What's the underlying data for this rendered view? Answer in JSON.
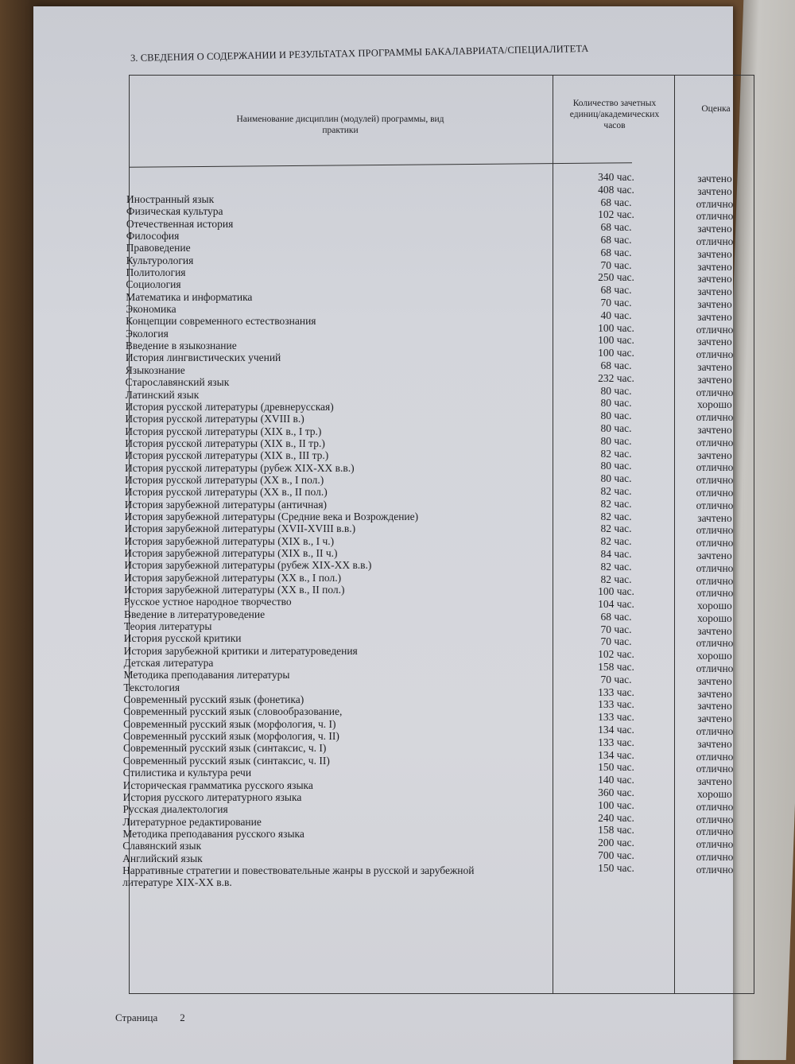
{
  "section_title": "3. СВЕДЕНИЯ О СОДЕРЖАНИИ И РЕЗУЛЬТАТАХ ПРОГРАММЫ БАКАЛАВРИАТА/СПЕЦИАЛИТЕТА",
  "table": {
    "headers": {
      "name": "Наименование дисциплин (модулей) программы, вид практики",
      "hours": "Количество зачетных единиц/академических часов",
      "grade": "Оценка"
    },
    "rows": [
      {
        "name": "Иностранный язык",
        "hours": "340 час.",
        "grade": "зачтено"
      },
      {
        "name": "Физическая культура",
        "hours": "408 час.",
        "grade": "зачтено"
      },
      {
        "name": "Отечественная история",
        "hours": "68 час.",
        "grade": "отлично"
      },
      {
        "name": "Философия",
        "hours": "102 час.",
        "grade": "отлично"
      },
      {
        "name": "Правоведение",
        "hours": "68 час.",
        "grade": "зачтено"
      },
      {
        "name": "Культурология",
        "hours": "68 час.",
        "grade": "отлично"
      },
      {
        "name": "Политология",
        "hours": "68 час.",
        "grade": "зачтено"
      },
      {
        "name": "Социология",
        "hours": "70 час.",
        "grade": "зачтено"
      },
      {
        "name": "Математика и информатика",
        "hours": "250 час.",
        "grade": "зачтено"
      },
      {
        "name": "Экономика",
        "hours": "68 час.",
        "grade": "зачтено"
      },
      {
        "name": "Концепции современного естествознания",
        "hours": "70 час.",
        "grade": "зачтено"
      },
      {
        "name": "Экология",
        "hours": "40 час.",
        "grade": "зачтено"
      },
      {
        "name": "Введение в языкознание",
        "hours": "100 час.",
        "grade": "отлично"
      },
      {
        "name": "История лингвистических учений",
        "hours": "100 час.",
        "grade": "зачтено"
      },
      {
        "name": "Языкознание",
        "hours": "100 час.",
        "grade": "отлично"
      },
      {
        "name": "Старославянский язык",
        "hours": "68 час.",
        "grade": "зачтено"
      },
      {
        "name": "Латинский язык",
        "hours": "232 час.",
        "grade": "зачтено"
      },
      {
        "name": "История русской литературы (древнерусская)",
        "hours": "80 час.",
        "grade": "отлично"
      },
      {
        "name": "История русской литературы (XVIII в.)",
        "hours": "80 час.",
        "grade": "хорошо"
      },
      {
        "name": "История русской литературы (XIX в., I тр.)",
        "hours": "80 час.",
        "grade": "отлично"
      },
      {
        "name": "История русской литературы (XIX в., II тр.)",
        "hours": "80 час.",
        "grade": "зачтено"
      },
      {
        "name": "История русской литературы (XIX в., III тр.)",
        "hours": "80 час.",
        "grade": "отлично"
      },
      {
        "name": "История русской литературы (рубеж XIX-XX в.в.)",
        "hours": "82 час.",
        "grade": "зачтено"
      },
      {
        "name": "История русской литературы (XX в., I пол.)",
        "hours": "80 час.",
        "grade": "отлично"
      },
      {
        "name": "История русской литературы (XX в., II пол.)",
        "hours": "80 час.",
        "grade": "отлично"
      },
      {
        "name": "История зарубежной литературы (античная)",
        "hours": "82 час.",
        "grade": "отлично"
      },
      {
        "name": "История зарубежной литературы (Средние века и Возрождение)",
        "hours": "82 час.",
        "grade": "отлично"
      },
      {
        "name": "История зарубежной литературы (XVII-XVIII в.в.)",
        "hours": "82 час.",
        "grade": "зачтено"
      },
      {
        "name": "История зарубежной литературы (XIX в., I ч.)",
        "hours": "82 час.",
        "grade": "отлично"
      },
      {
        "name": "История зарубежной литературы (XIX в., II ч.)",
        "hours": "82 час.",
        "grade": "отлично"
      },
      {
        "name": "История зарубежной литературы (рубеж XIX-XX в.в.)",
        "hours": "84 час.",
        "grade": "зачтено"
      },
      {
        "name": "История зарубежной литературы (XX в., I пол.)",
        "hours": "82 час.",
        "grade": "отлично"
      },
      {
        "name": "История зарубежной литературы (XX в., II пол.)",
        "hours": "82 час.",
        "grade": "отлично"
      },
      {
        "name": "Русское устное народное творчество",
        "hours": "100 час.",
        "grade": "отлично"
      },
      {
        "name": "Введение в литературоведение",
        "hours": "104 час.",
        "grade": "хорошо"
      },
      {
        "name": "Теория литературы",
        "hours": "68 час.",
        "grade": "хорошо"
      },
      {
        "name": "История русской критики",
        "hours": "70 час.",
        "grade": "зачтено"
      },
      {
        "name": "История зарубежной критики и литературоведения",
        "hours": "70 час.",
        "grade": "отлично"
      },
      {
        "name": "Детская литература",
        "hours": "102 час.",
        "grade": "хорошо"
      },
      {
        "name": "Методика преподавания литературы",
        "hours": "158 час.",
        "grade": "отлично"
      },
      {
        "name": "Текстология",
        "hours": "70 час.",
        "grade": "зачтено"
      },
      {
        "name": "Современный русский язык (фонетика)",
        "hours": "133 час.",
        "grade": "зачтено"
      },
      {
        "name": "Современный русский язык (словообразование,",
        "hours": "133 час.",
        "grade": "зачтено"
      },
      {
        "name": "Современный русский язык (морфология, ч. I)",
        "hours": "133 час.",
        "grade": "зачтено"
      },
      {
        "name": "Современный русский язык (морфология, ч. II)",
        "hours": "134 час.",
        "grade": "отлично"
      },
      {
        "name": "Современный русский язык (синтаксис, ч. I)",
        "hours": "133 час.",
        "grade": "зачтено"
      },
      {
        "name": "Современный русский язык (синтаксис, ч. II)",
        "hours": "134 час.",
        "grade": "отлично"
      },
      {
        "name": "Стилистика и культура речи",
        "hours": "150 час.",
        "grade": "отлично"
      },
      {
        "name": "Историческая грамматика русского языка",
        "hours": "140 час.",
        "grade": "зачтено"
      },
      {
        "name": "История русского литературного языка",
        "hours": "360 час.",
        "grade": "хорошо"
      },
      {
        "name": "Русская диалектология",
        "hours": "100 час.",
        "grade": "отлично"
      },
      {
        "name": "Литературное редактирование",
        "hours": "240 час.",
        "grade": "отлично"
      },
      {
        "name": "Методика преподавания русского языка",
        "hours": "158 час.",
        "grade": "отлично"
      },
      {
        "name": "Славянский язык",
        "hours": "200 час.",
        "grade": "отлично"
      },
      {
        "name": "Английский язык",
        "hours": "700 час.",
        "grade": "отлично"
      },
      {
        "name": "Нарративные стратегии и повествовательные жанры в русской и зарубежной литературе XIX-XX в.в.",
        "hours": "150 час.",
        "grade": "отлично"
      }
    ]
  },
  "footer": {
    "page_label": "Страница",
    "page_number": "2"
  }
}
